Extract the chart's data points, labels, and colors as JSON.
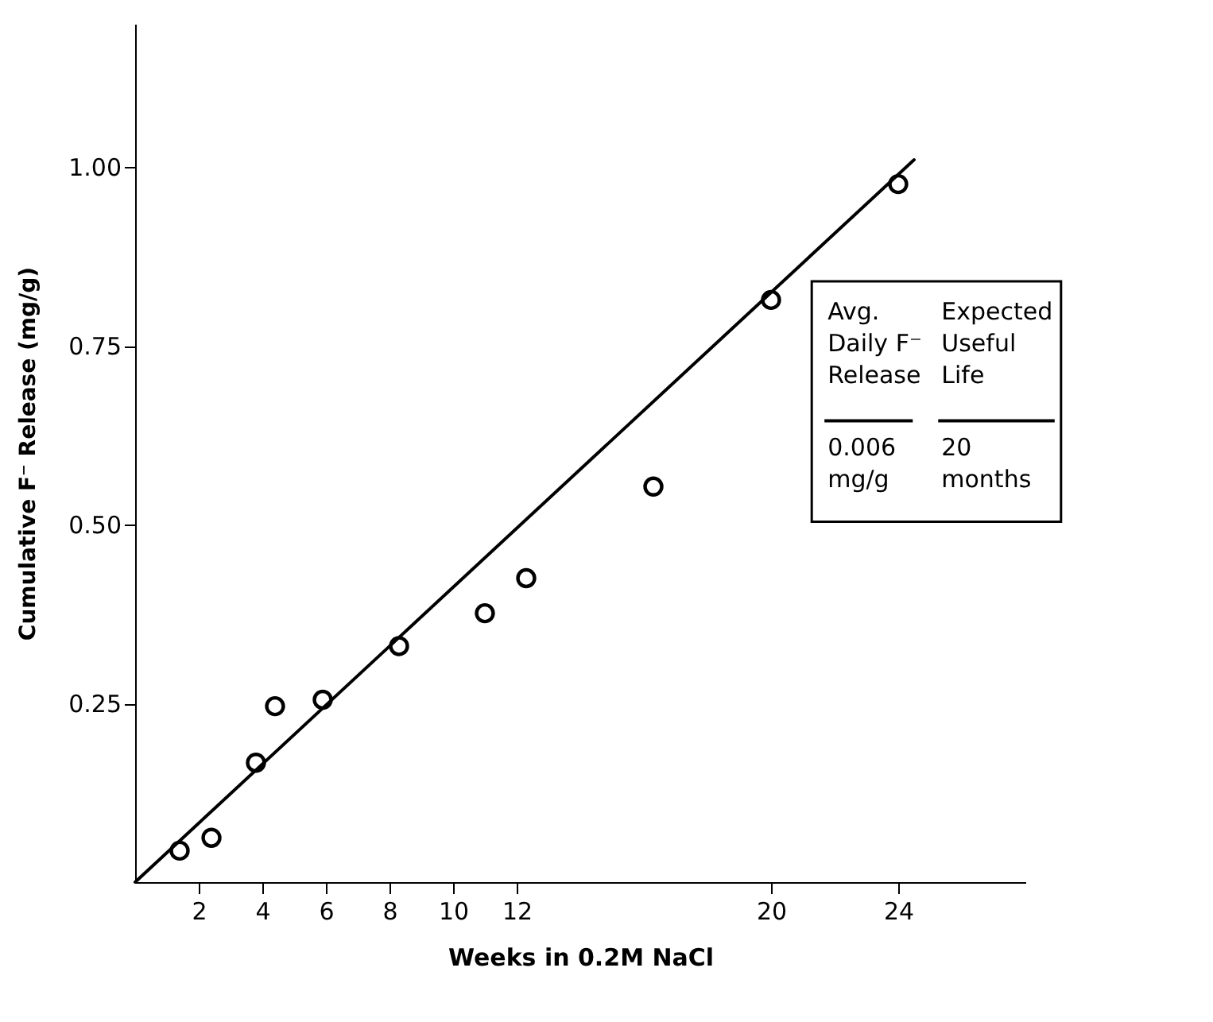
{
  "chart_data": {
    "type": "scatter",
    "xlabel": "Weeks in 0.2M NaCl",
    "ylabel": "Cumulative F⁻ Release (mg/g)",
    "xlim": [
      0,
      28
    ],
    "xticks": [
      2,
      4,
      6,
      8,
      10,
      12,
      20,
      24
    ],
    "ylim": [
      0,
      1.2
    ],
    "yticks": [
      {
        "value": 0.25,
        "label": "0.25"
      },
      {
        "value": 0.5,
        "label": "0.50"
      },
      {
        "value": 0.75,
        "label": "0.75"
      },
      {
        "value": 1.0,
        "label": "1.00"
      }
    ],
    "grid": false,
    "series": [
      {
        "marker": "circle",
        "color": "#000000",
        "x": [
          1.4,
          2.4,
          3.8,
          4.4,
          5.9,
          8.3,
          11,
          12.3,
          16.3,
          20,
          24
        ],
        "values": [
          0.044,
          0.062,
          0.167,
          0.246,
          0.255,
          0.33,
          0.376,
          0.425,
          0.553,
          0.814,
          0.976
        ]
      },
      {
        "type": "line",
        "marker": "none",
        "line_style": "solid",
        "color": "#000000",
        "x": [
          0,
          24.5
        ],
        "values": [
          0,
          1.01
        ]
      }
    ],
    "annotations": [
      "Avg. Daily F⁻ Release",
      "Expected Useful Life",
      "0.006 mg/g",
      "20 months"
    ]
  }
}
